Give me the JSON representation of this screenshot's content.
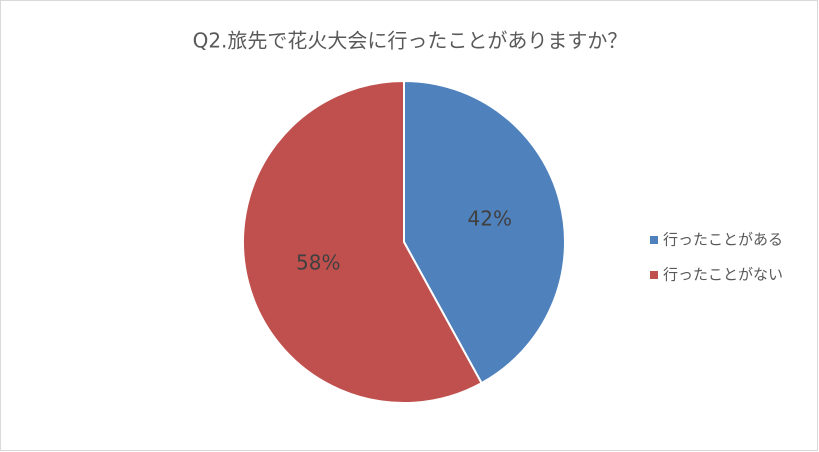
{
  "chart_data": {
    "type": "pie",
    "title": "Q2.旅先で花火大会に行ったことがありますか？",
    "categories": [
      "行ったことがある",
      "行ったことがない"
    ],
    "values": [
      42,
      58
    ],
    "value_labels": [
      "42%",
      "58%"
    ],
    "colors": [
      "#4f81bd",
      "#c0504d"
    ],
    "legend": "right"
  }
}
